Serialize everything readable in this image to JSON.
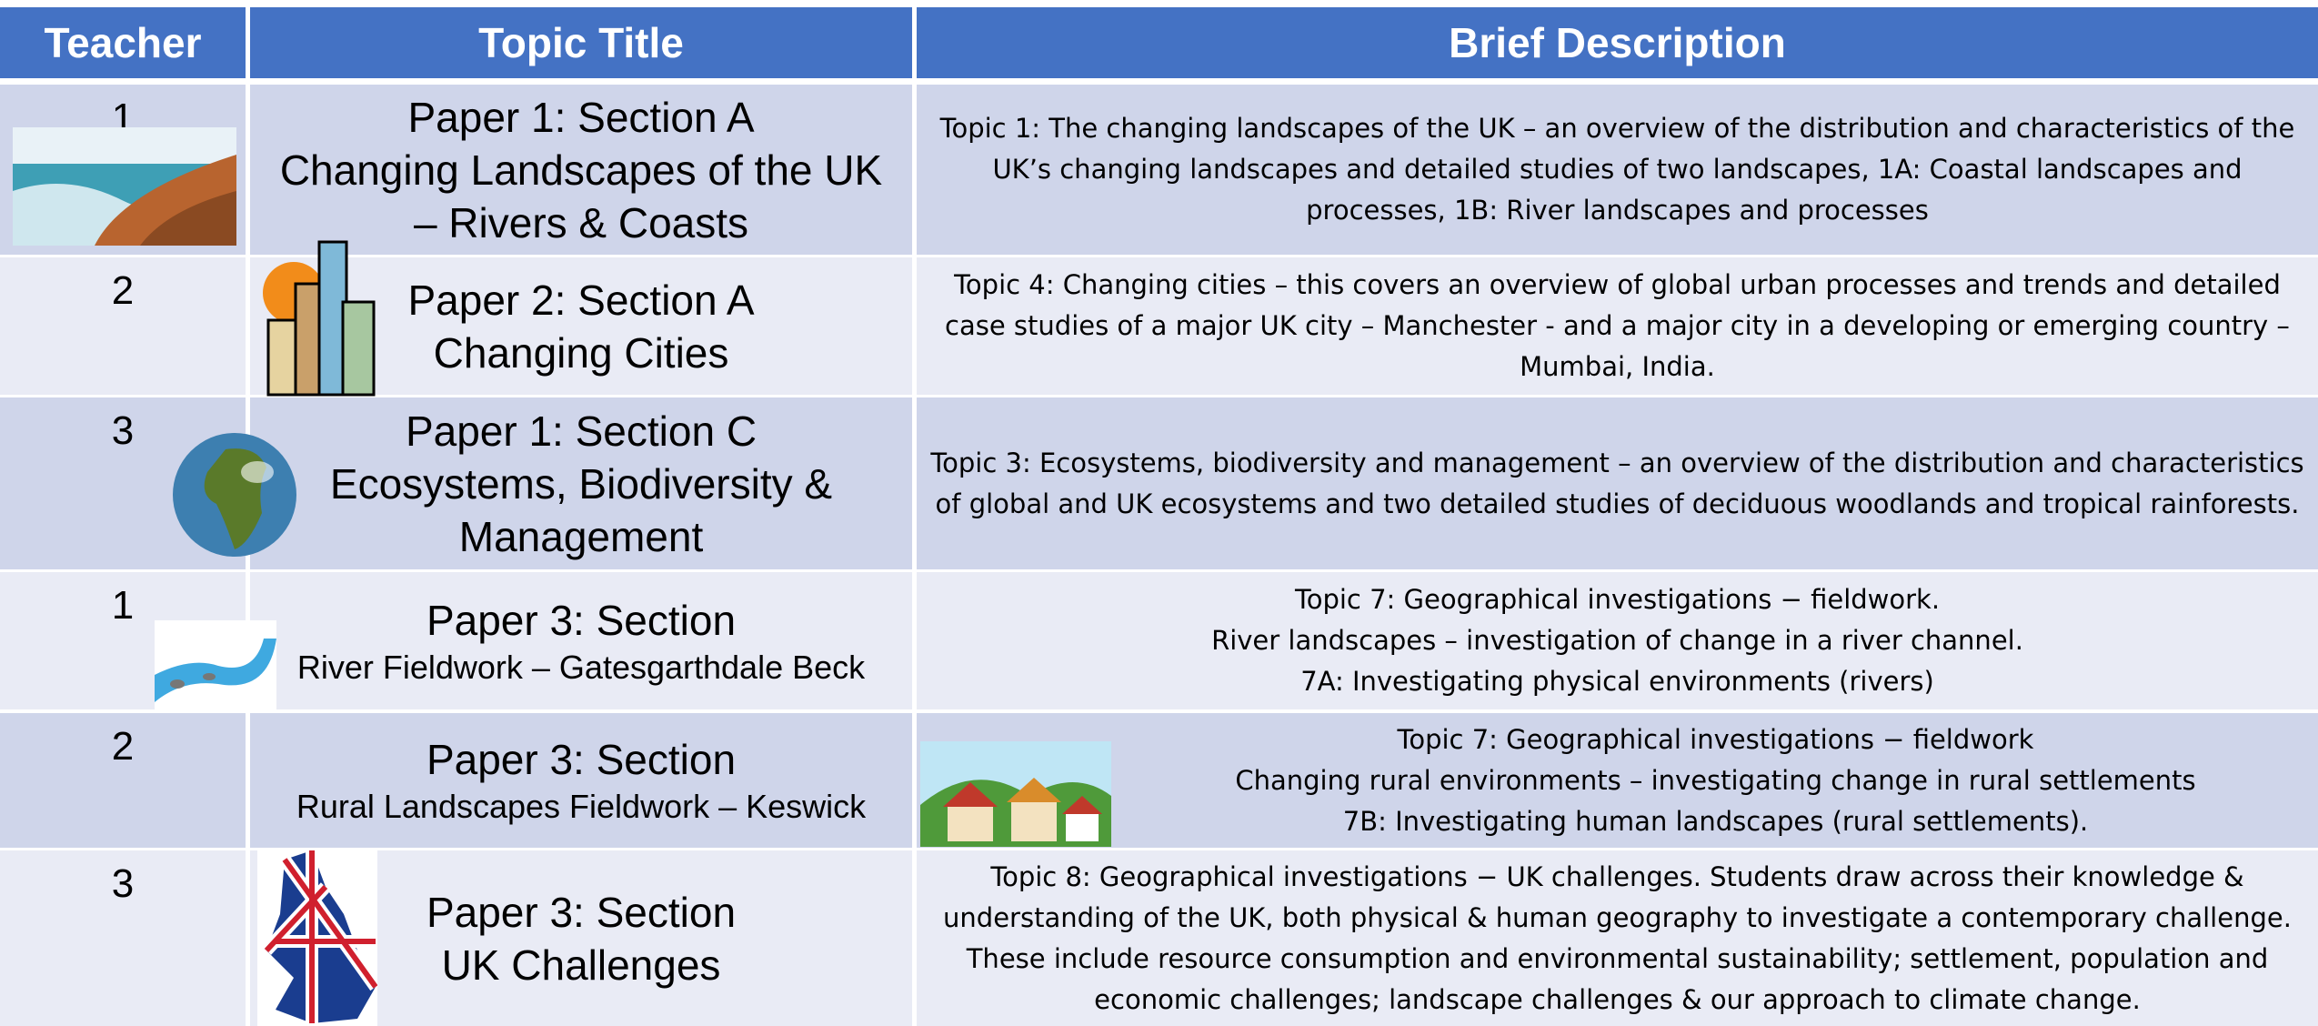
{
  "table": {
    "header": [
      "Teacher",
      "Topic Title",
      "Brief Description"
    ],
    "rows": [
      {
        "teacher": "1",
        "topic": [
          "Paper 1: Section A",
          "Changing Landscapes of the UK",
          "– Rivers & Coasts"
        ],
        "description": [
          "Topic 1: The changing landscapes of the UK – an overview of the distribution and characteristics of the UK’s changing landscapes and detailed studies of two landscapes, 1A: Coastal landscapes and processes, 1B: River landscapes and processes"
        ]
      },
      {
        "teacher": "2",
        "topic": [
          "Paper 2: Section A",
          "Changing Cities"
        ],
        "description": [
          "Topic 4: Changing cities – this covers an overview of global urban processes and trends and detailed case studies of a major UK city – Manchester - and a major city in a developing or emerging country – Mumbai, India."
        ]
      },
      {
        "teacher": "3",
        "topic": [
          "Paper 1: Section C",
          "Ecosystems, Biodiversity &",
          "Management"
        ],
        "description": [
          "Topic 3: Ecosystems, biodiversity and management – an overview of the distribution and characteristics of global and UK ecosystems and two detailed studies of deciduous woodlands and tropical rainforests."
        ]
      },
      {
        "teacher": "1",
        "topic": [
          "Paper 3: Section",
          "River Fieldwork – Gatesgarthdale Beck"
        ],
        "description": [
          "Topic 7: Geographical investigations − fieldwork.",
          "River landscapes – investigation of change in a river channel.",
          "7A: Investigating physical environments (rivers)"
        ]
      },
      {
        "teacher": "2",
        "topic": [
          "Paper 3: Section",
          "Rural Landscapes Fieldwork – Keswick"
        ],
        "description": [
          "Topic 7: Geographical investigations − fieldwork",
          "Changing rural environments – investigating change in rural settlements",
          "7B: Investigating human landscapes (rural settlements)."
        ]
      },
      {
        "teacher": "3",
        "topic": [
          "Paper 3: Section",
          "UK Challenges"
        ],
        "description": [
          "Topic 8: Geographical investigations − UK challenges. Students draw across their knowledge & understanding of the UK, both physical & human geography to investigate a contemporary challenge. These include resource consumption and environmental sustainability; settlement, population and economic challenges; landscape challenges & our approach to climate change."
        ]
      }
    ]
  }
}
